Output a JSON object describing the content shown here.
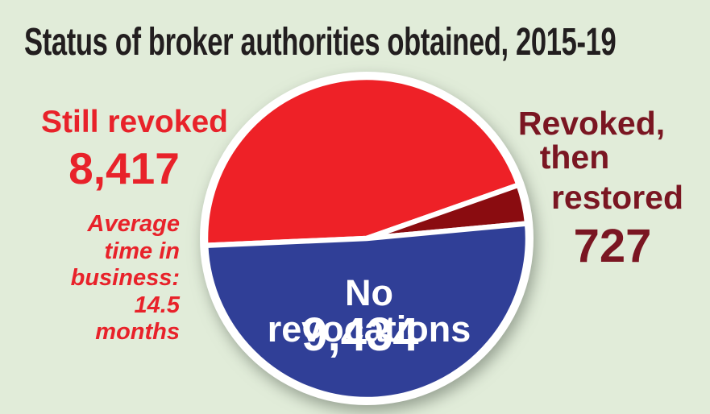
{
  "title": "Status of broker authorities obtained, 2015-19",
  "chart_data": {
    "type": "pie",
    "title": "Status of broker authorities obtained, 2015-19",
    "total": 18578,
    "slices": [
      {
        "label": "Still revoked",
        "value": 8417,
        "display_value": "8,417",
        "color": "#ee2127"
      },
      {
        "label": "Revoked, then restored",
        "value": 727,
        "display_value": "727",
        "color": "#8a0c10"
      },
      {
        "label": "No revocations",
        "value": 9434,
        "display_value": "9,434",
        "color": "#303f97"
      }
    ],
    "annotation": "Average time in business: 14.5 months",
    "legend_position": "labels-around-pie",
    "grid": false
  },
  "labels": {
    "still_revoked": {
      "text": "Still revoked",
      "value": "8,417"
    },
    "annotation_lines": [
      "Average",
      "time in",
      "business:",
      "14.5",
      "months"
    ],
    "revoked_restored": {
      "line1": "Revoked,",
      "line2": "then",
      "line3": "restored",
      "value": "727"
    },
    "no_revocations": {
      "text": "No revocations",
      "value": "9,434"
    }
  },
  "colors": {
    "background": "#e1ecd9",
    "title_ink": "#221e1f",
    "slice_red": "#ee2127",
    "slice_maroon": "#8a0c10",
    "slice_blue": "#303f97",
    "text_red": "#e8222a",
    "text_maroon": "#7a1622",
    "text_white": "#ffffff",
    "separator_white": "#ffffff"
  }
}
